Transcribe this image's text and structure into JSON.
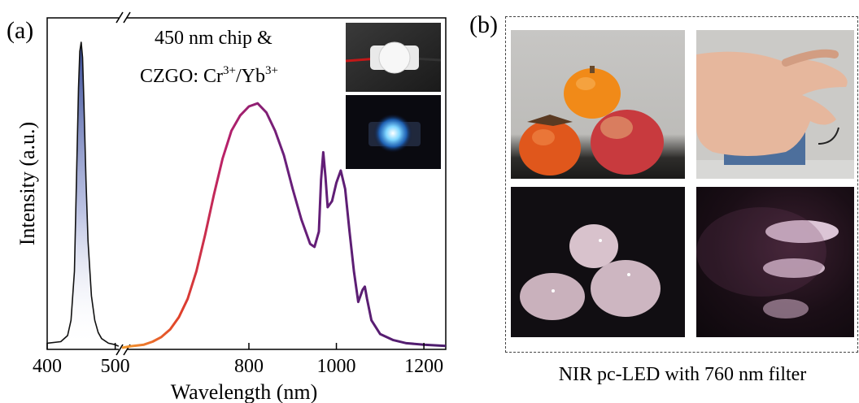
{
  "panel_a": {
    "label": "(a)",
    "annotation_line1": "450 nm chip &",
    "annotation_line2_base": "CZGO: Cr",
    "annotation_sup1": "3+",
    "annotation_mid": "/Yb",
    "annotation_sup2": "3+",
    "inset_photos": [
      "led-device-off-photo",
      "led-device-lit-photo"
    ]
  },
  "panel_b": {
    "label": "(b)",
    "caption": "NIR pc-LED with 760 nm filter",
    "photos": [
      "fruits-visible-photo",
      "hand-visible-photo",
      "fruits-nir-photo",
      "hand-nir-veins-photo"
    ]
  },
  "chart_data": {
    "type": "line",
    "title": "",
    "xlabel": "Wavelength (nm)",
    "ylabel": "Intensity (a.u.)",
    "broken_x_axis": true,
    "segments": [
      {
        "xlim": [
          400,
          510
        ],
        "ticks": [
          400,
          500
        ]
      },
      {
        "xlim": [
          510,
          1250
        ],
        "ticks": [
          800,
          1000,
          1200
        ]
      }
    ],
    "tick_labels": [
      "400",
      "500",
      "800",
      "1000",
      "1200"
    ],
    "yticks_shown": false,
    "series": [
      {
        "color": "#1a2a6c",
        "x": [
          400,
          420,
          430,
          435,
          440,
          443,
          446,
          448,
          450,
          452,
          454,
          457,
          460,
          465,
          470,
          475,
          480,
          490,
          500,
          505
        ],
        "y": [
          0.015,
          0.02,
          0.04,
          0.09,
          0.25,
          0.55,
          0.85,
          0.97,
          1.0,
          0.95,
          0.8,
          0.55,
          0.35,
          0.17,
          0.09,
          0.05,
          0.03,
          0.015,
          0.01,
          0.005
        ]
      },
      {
        "color_gradient": [
          "#f39a2d",
          "#e0402a",
          "#b8206a",
          "#6a1f7a",
          "#4b1c6c"
        ],
        "x": [
          510,
          530,
          560,
          580,
          600,
          620,
          640,
          660,
          680,
          700,
          720,
          740,
          760,
          780,
          800,
          820,
          840,
          860,
          880,
          900,
          920,
          940,
          950,
          960,
          965,
          970,
          975,
          980,
          990,
          1000,
          1010,
          1020,
          1030,
          1040,
          1050,
          1060,
          1065,
          1070,
          1080,
          1100,
          1130,
          1160,
          1200,
          1250
        ],
        "y": [
          0.0,
          0.005,
          0.01,
          0.02,
          0.035,
          0.06,
          0.1,
          0.16,
          0.25,
          0.37,
          0.5,
          0.62,
          0.71,
          0.76,
          0.79,
          0.8,
          0.77,
          0.71,
          0.63,
          0.52,
          0.42,
          0.34,
          0.33,
          0.38,
          0.55,
          0.64,
          0.56,
          0.46,
          0.48,
          0.54,
          0.58,
          0.52,
          0.38,
          0.25,
          0.15,
          0.19,
          0.2,
          0.16,
          0.09,
          0.045,
          0.025,
          0.015,
          0.01,
          0.006
        ]
      }
    ]
  }
}
